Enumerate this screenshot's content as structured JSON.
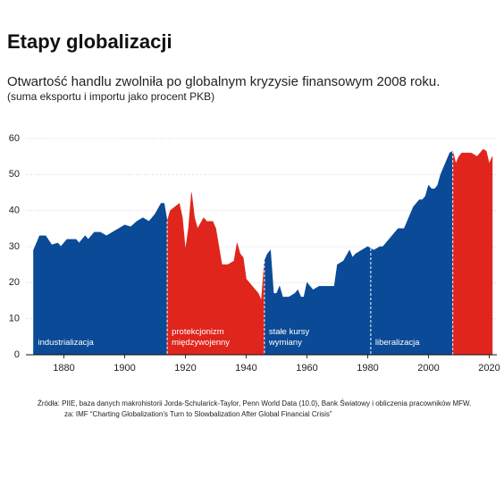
{
  "chart_data": {
    "type": "area",
    "title": "Etapy globalizacji",
    "subtitle": "Otwartość handlu zwolniła po globalnym kryzysie finansowym 2008 roku.",
    "note": "(suma eksportu i importu jako procent PKB)",
    "source": "Źródła: PIIE, baza danych makrohistorii Jorda-Schularick-Taylor, Penn World Data (10.0), Bank Światowy i obliczenia pracowników MFW.",
    "via": "za: IMF “Charting Globalization’s Turn to Slowbalization After Global Financial Crisis”",
    "xlim": [
      1867.5,
      2022.5
    ],
    "xticks": [
      1880,
      1900,
      1920,
      1940,
      1960,
      1980,
      2000,
      2020
    ],
    "ylim": [
      0,
      60
    ],
    "yticks": [
      0,
      10,
      20,
      30,
      40,
      50,
      60
    ],
    "grid": true,
    "series": [
      {
        "name": "industrializacja",
        "color": "#0a4a96",
        "x": [
          1870,
          1872,
          1874,
          1876,
          1878,
          1879,
          1881,
          1884,
          1885,
          1887,
          1888,
          1890,
          1892,
          1894,
          1896,
          1898,
          1900,
          1902,
          1904,
          1906,
          1908,
          1909,
          1910,
          1912,
          1913,
          1914
        ],
        "values": [
          29,
          33,
          33,
          30.5,
          31,
          30,
          32,
          32,
          31,
          33,
          32,
          34,
          34,
          33,
          34,
          35,
          36,
          35.5,
          37,
          38,
          37,
          38,
          39,
          42,
          42,
          37
        ]
      },
      {
        "name": "protekcjonizm międzywojenny",
        "color": "#e0251d",
        "x": [
          1914,
          1915,
          1918,
          1919,
          1920,
          1921,
          1922,
          1923,
          1924,
          1926,
          1927,
          1929,
          1930,
          1931,
          1932,
          1934,
          1936,
          1937,
          1938,
          1939,
          1940,
          1942,
          1944,
          1945,
          1946
        ],
        "values": [
          37,
          40,
          42,
          38,
          29,
          35,
          45,
          38,
          35,
          38,
          37,
          37,
          35,
          30,
          25,
          25,
          26,
          31,
          28,
          27,
          21,
          19,
          17,
          15,
          26
        ]
      },
      {
        "name": "stałe kursy wymiany",
        "color": "#0a4a96",
        "x": [
          1946,
          1947,
          1948,
          1949,
          1950,
          1951,
          1952,
          1954,
          1956,
          1957,
          1958,
          1959,
          1960,
          1961,
          1962,
          1964,
          1966,
          1968,
          1969,
          1970,
          1972,
          1974,
          1975,
          1976,
          1978,
          1979,
          1980,
          1981
        ],
        "values": [
          26,
          28,
          29,
          17,
          17,
          19,
          16,
          16,
          17,
          18,
          16,
          16,
          20,
          19,
          18,
          19,
          19,
          19,
          19,
          25,
          26,
          29,
          27,
          28,
          29,
          29.5,
          30,
          29.5
        ]
      },
      {
        "name": "liberalizacja",
        "color": "#0a4a96",
        "x": [
          1981,
          1982,
          1984,
          1985,
          1987,
          1989,
          1990,
          1992,
          1993,
          1994,
          1995,
          1996,
          1997,
          1998,
          1999,
          2000,
          2001,
          2002,
          2003,
          2004,
          2005,
          2006,
          2007,
          2008
        ],
        "values": [
          29.5,
          29,
          30,
          30,
          32,
          34,
          35,
          35,
          37,
          39,
          41,
          42,
          43,
          43,
          44,
          47,
          46,
          46,
          47,
          50,
          52,
          54,
          56,
          56.5
        ]
      },
      {
        "name": null,
        "color": "#e0251d",
        "x": [
          2008,
          2009,
          2010,
          2011,
          2012,
          2013,
          2014,
          2015,
          2016,
          2017,
          2018,
          2019,
          2020,
          2021
        ],
        "values": [
          56.5,
          53,
          55,
          56,
          56,
          56,
          56,
          55.5,
          55,
          56,
          57,
          56.5,
          53,
          55
        ]
      }
    ]
  }
}
